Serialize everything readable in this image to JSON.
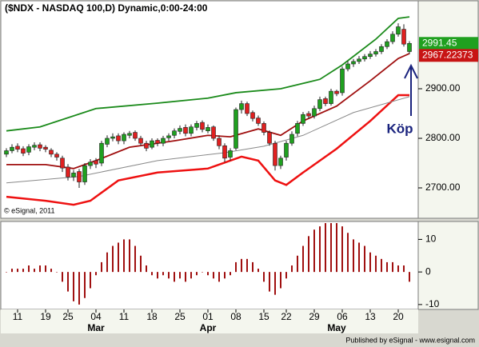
{
  "chart_data": [
    {
      "type": "candlestick",
      "title": "($NDX - NASDAQ 100,D) Dynamic,0:00-24:00",
      "copyright": "© eSignal, 2011",
      "annotation": "Köp",
      "up_color": "#1fa01f",
      "down_color": "#e02020",
      "open": [
        2768,
        2775,
        2784,
        2779,
        2772,
        2782,
        2787,
        2782,
        2776,
        2768,
        2760,
        2742,
        2722,
        2733,
        2712,
        2745,
        2755,
        2750,
        2788,
        2800,
        2805,
        2795,
        2806,
        2812,
        2800,
        2790,
        2782,
        2796,
        2790,
        2801,
        2806,
        2814,
        2822,
        2810,
        2822,
        2832,
        2815,
        2823,
        2800,
        2785,
        2762,
        2780,
        2858,
        2870,
        2852,
        2841,
        2830,
        2812,
        2790,
        2745,
        2762,
        2790,
        2810,
        2830,
        2850,
        2845,
        2860,
        2880,
        2870,
        2895,
        2892,
        2940,
        2950,
        2955,
        2960,
        2965,
        2970,
        2975,
        2985,
        2995,
        3010,
        3020,
        2975
      ],
      "high": [
        2780,
        2788,
        2790,
        2784,
        2788,
        2792,
        2792,
        2786,
        2780,
        2772,
        2765,
        2748,
        2736,
        2738,
        2750,
        2758,
        2760,
        2795,
        2806,
        2810,
        2810,
        2812,
        2815,
        2816,
        2805,
        2795,
        2800,
        2800,
        2805,
        2810,
        2820,
        2826,
        2828,
        2828,
        2835,
        2836,
        2828,
        2826,
        2806,
        2790,
        2780,
        2862,
        2876,
        2874,
        2856,
        2846,
        2834,
        2816,
        2795,
        2765,
        2795,
        2814,
        2835,
        2853,
        2855,
        2866,
        2884,
        2884,
        2900,
        2898,
        2945,
        2956,
        2960,
        2966,
        2970,
        2976,
        2980,
        2990,
        3000,
        3016,
        3032,
        3030,
        2996
      ],
      "low": [
        2762,
        2770,
        2772,
        2764,
        2766,
        2776,
        2774,
        2772,
        2762,
        2755,
        2732,
        2715,
        2714,
        2700,
        2706,
        2738,
        2740,
        2744,
        2782,
        2794,
        2788,
        2788,
        2800,
        2795,
        2785,
        2774,
        2778,
        2784,
        2784,
        2795,
        2800,
        2808,
        2804,
        2804,
        2816,
        2812,
        2810,
        2795,
        2778,
        2752,
        2755,
        2776,
        2850,
        2845,
        2834,
        2825,
        2806,
        2785,
        2735,
        2738,
        2755,
        2785,
        2804,
        2825,
        2840,
        2840,
        2855,
        2865,
        2866,
        2885,
        2886,
        2935,
        2944,
        2950,
        2955,
        2960,
        2965,
        2970,
        2980,
        2990,
        3005,
        2985,
        2970
      ],
      "close": [
        2775,
        2782,
        2778,
        2770,
        2783,
        2786,
        2780,
        2778,
        2768,
        2762,
        2740,
        2722,
        2730,
        2712,
        2745,
        2752,
        2748,
        2790,
        2800,
        2803,
        2795,
        2808,
        2810,
        2800,
        2790,
        2780,
        2795,
        2790,
        2800,
        2805,
        2815,
        2820,
        2810,
        2823,
        2830,
        2818,
        2822,
        2800,
        2785,
        2760,
        2775,
        2858,
        2870,
        2850,
        2840,
        2830,
        2812,
        2790,
        2745,
        2760,
        2790,
        2808,
        2830,
        2848,
        2845,
        2860,
        2878,
        2870,
        2895,
        2890,
        2940,
        2950,
        2955,
        2960,
        2965,
        2970,
        2975,
        2985,
        2995,
        3010,
        3025,
        2990,
        2991.45
      ],
      "lines": [
        {
          "color": "#1a8a1a",
          "x": [
            0,
            6,
            16,
            27,
            36,
            41,
            49,
            56,
            60,
            66,
            70,
            72
          ],
          "values": [
            2815,
            2823,
            2860,
            2871,
            2881,
            2892,
            2900,
            2919,
            2948,
            3000,
            3042,
            3045
          ]
        },
        {
          "color": "#ee1111",
          "x": [
            0,
            7,
            12,
            15,
            20,
            27,
            36,
            42,
            45,
            48,
            50,
            53,
            59,
            65,
            70,
            72
          ],
          "values": [
            2682,
            2674,
            2666,
            2674,
            2715,
            2731,
            2739,
            2763,
            2755,
            2715,
            2706,
            2731,
            2779,
            2835,
            2887,
            2887
          ]
        },
        {
          "color": "#a01010",
          "x": [
            0,
            7,
            12,
            16,
            22,
            30,
            36,
            40,
            45,
            49,
            53,
            59,
            65,
            70,
            72
          ],
          "values": [
            2747,
            2747,
            2739,
            2755,
            2782,
            2795,
            2806,
            2803,
            2819,
            2806,
            2835,
            2865,
            2916,
            2961,
            2971
          ]
        },
        {
          "color": "#8a8a8a",
          "x": [
            0,
            13,
            27,
            39,
            46,
            53,
            62,
            72
          ],
          "values": [
            2710,
            2723,
            2755,
            2771,
            2784,
            2806,
            2852,
            2884
          ]
        }
      ],
      "price_markers": [
        {
          "value": 2991.45,
          "color": "#1fa01f"
        },
        {
          "value": 2967.22373,
          "color": "#c81414"
        }
      ],
      "ylim": [
        2638.7,
        3077.4
      ],
      "yticks": [
        {
          "value": 2700,
          "label": "2700.00"
        },
        {
          "value": 2800,
          "label": "2800.00"
        },
        {
          "value": 2900,
          "label": "2900.00"
        }
      ]
    },
    {
      "type": "bar",
      "color": "#a01010",
      "values": [
        0,
        1,
        1,
        1,
        2,
        1,
        2,
        2,
        1,
        0,
        -3,
        -6,
        -9,
        -10,
        -8,
        -5,
        -1,
        3,
        6,
        8,
        9,
        10,
        10,
        8,
        5,
        2,
        -1,
        -2,
        -1,
        -2,
        -3,
        -2,
        -3,
        -2,
        -1,
        0,
        -1,
        -2,
        -3,
        -2,
        -1,
        3,
        4,
        4,
        3,
        1,
        -3,
        -6,
        -7,
        -5,
        -2,
        2,
        5,
        8,
        11,
        13,
        14,
        15,
        15,
        15,
        14,
        12,
        10,
        9,
        8,
        6,
        5,
        4,
        3,
        3,
        2,
        2,
        -3
      ],
      "categories": [
        null,
        null,
        "11",
        null,
        null,
        null,
        null,
        "19",
        null,
        null,
        null,
        "25",
        null,
        null,
        null,
        null,
        "04",
        null,
        null,
        null,
        null,
        "11",
        null,
        null,
        null,
        null,
        "18",
        null,
        null,
        null,
        null,
        "25",
        null,
        null,
        null,
        null,
        "01",
        null,
        null,
        null,
        null,
        "08",
        null,
        null,
        null,
        null,
        "15",
        null,
        null,
        null,
        "22",
        null,
        null,
        null,
        null,
        "29",
        null,
        null,
        null,
        null,
        "06",
        null,
        null,
        null,
        null,
        "13",
        null,
        null,
        null,
        null,
        "20",
        null,
        null
      ],
      "months": [
        null,
        null,
        null,
        null,
        null,
        null,
        null,
        null,
        null,
        null,
        null,
        null,
        null,
        null,
        null,
        null,
        "Mar",
        null,
        null,
        null,
        null,
        null,
        null,
        null,
        null,
        null,
        null,
        null,
        null,
        null,
        null,
        null,
        null,
        null,
        null,
        null,
        "Apr",
        null,
        null,
        null,
        null,
        null,
        null,
        null,
        null,
        null,
        null,
        null,
        null,
        null,
        null,
        null,
        null,
        null,
        null,
        null,
        null,
        null,
        null,
        "May",
        null,
        null,
        null,
        null,
        null,
        null,
        null,
        null,
        null,
        null,
        null,
        null,
        null
      ],
      "ylim": [
        -11.5,
        15.5
      ],
      "yticks": [
        10,
        0,
        -10
      ]
    }
  ],
  "footer": "Published by eSignal - www.esignal.com"
}
